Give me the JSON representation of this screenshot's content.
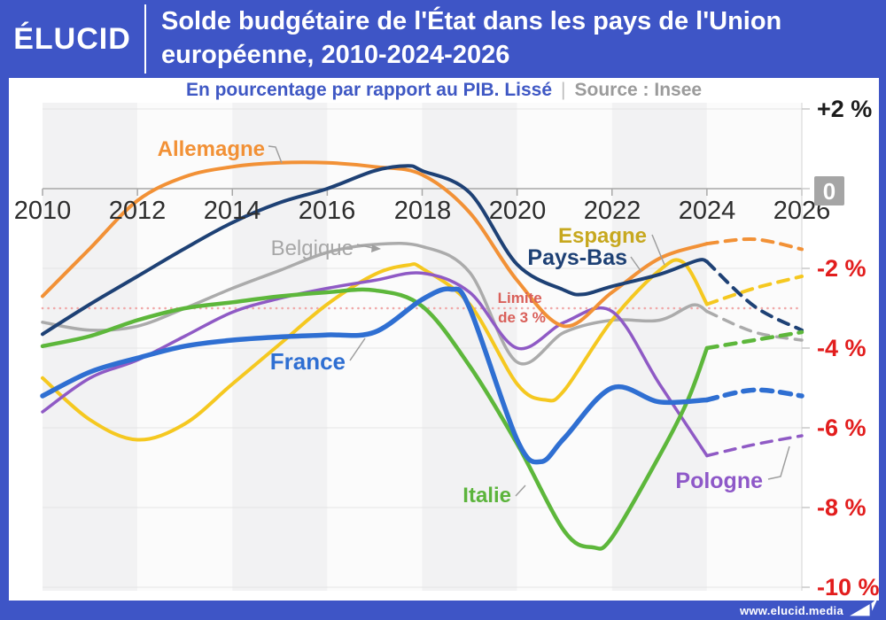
{
  "header": {
    "logo": "ÉLUCID",
    "title_line1": "Solde budgétaire de l'État dans les pays de l'Union",
    "title_line2": "européenne, 2010-2024-2026"
  },
  "subtitle": {
    "main": "En pourcentage par rapport au PIB. Lissé",
    "separator": "|",
    "source": "Source : Insee"
  },
  "footer": {
    "url": "www.elucid.media"
  },
  "chart_data": {
    "type": "line",
    "title": "Solde budgétaire de l'État dans les pays de l'Union européenne, 2010-2024-2026",
    "unit": "% du PIB",
    "xlim": [
      2010,
      2026
    ],
    "ylim": [
      -10,
      2
    ],
    "grid": true,
    "forecast_from": 2024,
    "x_ticks": [
      "2010",
      "2012",
      "2014",
      "2016",
      "2018",
      "2020",
      "2022",
      "2024",
      "2026"
    ],
    "y_ticks": [
      "+2 %",
      "0",
      "-2 %",
      "-4 %",
      "-6 %",
      "-8 %",
      "-10 %"
    ],
    "y_tick_values": [
      2,
      0,
      -2,
      -4,
      -6,
      -8,
      -10
    ],
    "limit_line": {
      "value": -3,
      "label_line1": "Limite",
      "label_line2": "de 3 %"
    },
    "series": [
      {
        "id": "allemagne",
        "name": "Allemagne",
        "color": "#f29136",
        "width": 4,
        "points": [
          [
            2010,
            -2.7
          ],
          [
            2011,
            -1.5
          ],
          [
            2012,
            -0.3
          ],
          [
            2013,
            0.3
          ],
          [
            2014,
            0.55
          ],
          [
            2015,
            0.65
          ],
          [
            2016,
            0.65
          ],
          [
            2017,
            0.55
          ],
          [
            2018,
            0.35
          ],
          [
            2019,
            -0.6
          ],
          [
            2020,
            -2.3
          ],
          [
            2021,
            -3.45
          ],
          [
            2022,
            -2.6
          ],
          [
            2023,
            -1.75
          ],
          [
            2024,
            -1.38
          ],
          [
            2025,
            -1.27
          ],
          [
            2026,
            -1.52
          ]
        ]
      },
      {
        "id": "belgique",
        "name": "Belgique",
        "color": "#ababab",
        "width": 3.5,
        "points": [
          [
            2010,
            -3.35
          ],
          [
            2011,
            -3.55
          ],
          [
            2012,
            -3.45
          ],
          [
            2013,
            -3.0
          ],
          [
            2014,
            -2.5
          ],
          [
            2015,
            -2.05
          ],
          [
            2016,
            -1.6
          ],
          [
            2017,
            -1.4
          ],
          [
            2018,
            -1.45
          ],
          [
            2019,
            -2.1
          ],
          [
            2020,
            -4.35
          ],
          [
            2021,
            -3.6
          ],
          [
            2022,
            -3.3
          ],
          [
            2023,
            -3.3
          ],
          [
            2023.7,
            -2.92
          ],
          [
            2024,
            -3.08
          ],
          [
            2025,
            -3.6
          ],
          [
            2026,
            -3.8
          ]
        ]
      },
      {
        "id": "espagne",
        "name": "Espagne",
        "color": "#f5c820",
        "width": 4,
        "points": [
          [
            2010,
            -4.75
          ],
          [
            2011,
            -5.8
          ],
          [
            2012,
            -6.3
          ],
          [
            2013,
            -5.9
          ],
          [
            2014,
            -4.9
          ],
          [
            2015,
            -3.9
          ],
          [
            2016,
            -2.9
          ],
          [
            2017,
            -2.15
          ],
          [
            2017.7,
            -1.92
          ],
          [
            2018,
            -2.0
          ],
          [
            2019,
            -2.9
          ],
          [
            2020,
            -4.9
          ],
          [
            2020.6,
            -5.3
          ],
          [
            2021,
            -5.05
          ],
          [
            2022,
            -3.3
          ],
          [
            2023,
            -2.05
          ],
          [
            2023.5,
            -1.85
          ],
          [
            2024,
            -2.9
          ],
          [
            2025,
            -2.5
          ],
          [
            2026,
            -2.2
          ]
        ]
      },
      {
        "id": "pays-bas",
        "name": "Pays-Bas",
        "color": "#1e4175",
        "width": 4,
        "points": [
          [
            2010,
            -3.65
          ],
          [
            2011,
            -2.9
          ],
          [
            2012,
            -2.2
          ],
          [
            2013,
            -1.5
          ],
          [
            2014,
            -0.85
          ],
          [
            2015,
            -0.35
          ],
          [
            2016,
            0.0
          ],
          [
            2017,
            0.45
          ],
          [
            2017.7,
            0.57
          ],
          [
            2018,
            0.45
          ],
          [
            2019,
            -0.1
          ],
          [
            2020,
            -1.9
          ],
          [
            2021,
            -2.55
          ],
          [
            2021.4,
            -2.65
          ],
          [
            2022,
            -2.45
          ],
          [
            2023,
            -2.15
          ],
          [
            2023.8,
            -1.8
          ],
          [
            2024,
            -1.83
          ],
          [
            2025,
            -2.95
          ],
          [
            2026,
            -3.55
          ]
        ]
      },
      {
        "id": "france",
        "name": "France",
        "color": "#2f6fd2",
        "width": 5.5,
        "points": [
          [
            2010,
            -5.2
          ],
          [
            2011,
            -4.6
          ],
          [
            2012,
            -4.25
          ],
          [
            2013,
            -3.95
          ],
          [
            2014,
            -3.8
          ],
          [
            2015,
            -3.72
          ],
          [
            2016,
            -3.67
          ],
          [
            2017,
            -3.6
          ],
          [
            2018,
            -2.78
          ],
          [
            2018.6,
            -2.52
          ],
          [
            2019,
            -3.0
          ],
          [
            2020,
            -6.3
          ],
          [
            2020.5,
            -6.85
          ],
          [
            2021,
            -6.25
          ],
          [
            2022,
            -5.0
          ],
          [
            2023,
            -5.35
          ],
          [
            2024,
            -5.3
          ],
          [
            2025,
            -5.05
          ],
          [
            2026,
            -5.2
          ]
        ]
      },
      {
        "id": "italie",
        "name": "Italie",
        "color": "#5db73b",
        "width": 4.5,
        "points": [
          [
            2010,
            -3.95
          ],
          [
            2011,
            -3.7
          ],
          [
            2012,
            -3.3
          ],
          [
            2013,
            -3.0
          ],
          [
            2014,
            -2.85
          ],
          [
            2015,
            -2.7
          ],
          [
            2016,
            -2.6
          ],
          [
            2017,
            -2.55
          ],
          [
            2018,
            -2.95
          ],
          [
            2019,
            -4.45
          ],
          [
            2020,
            -6.4
          ],
          [
            2021,
            -8.6
          ],
          [
            2021.6,
            -9.0
          ],
          [
            2022,
            -8.75
          ],
          [
            2023,
            -6.7
          ],
          [
            2023.6,
            -5.3
          ],
          [
            2024,
            -4.0
          ],
          [
            2025,
            -3.8
          ],
          [
            2026,
            -3.6
          ]
        ]
      },
      {
        "id": "pologne",
        "name": "Pologne",
        "color": "#8f5ac5",
        "width": 3.5,
        "points": [
          [
            2010,
            -5.6
          ],
          [
            2011,
            -4.75
          ],
          [
            2012,
            -4.3
          ],
          [
            2013,
            -3.7
          ],
          [
            2014,
            -3.1
          ],
          [
            2015,
            -2.75
          ],
          [
            2016,
            -2.5
          ],
          [
            2017,
            -2.3
          ],
          [
            2018,
            -2.12
          ],
          [
            2019,
            -2.6
          ],
          [
            2020,
            -4.0
          ],
          [
            2021,
            -3.35
          ],
          [
            2022,
            -3.08
          ],
          [
            2023,
            -4.9
          ],
          [
            2024,
            -6.7
          ],
          [
            2025,
            -6.42
          ],
          [
            2026,
            -6.2
          ]
        ]
      }
    ]
  }
}
